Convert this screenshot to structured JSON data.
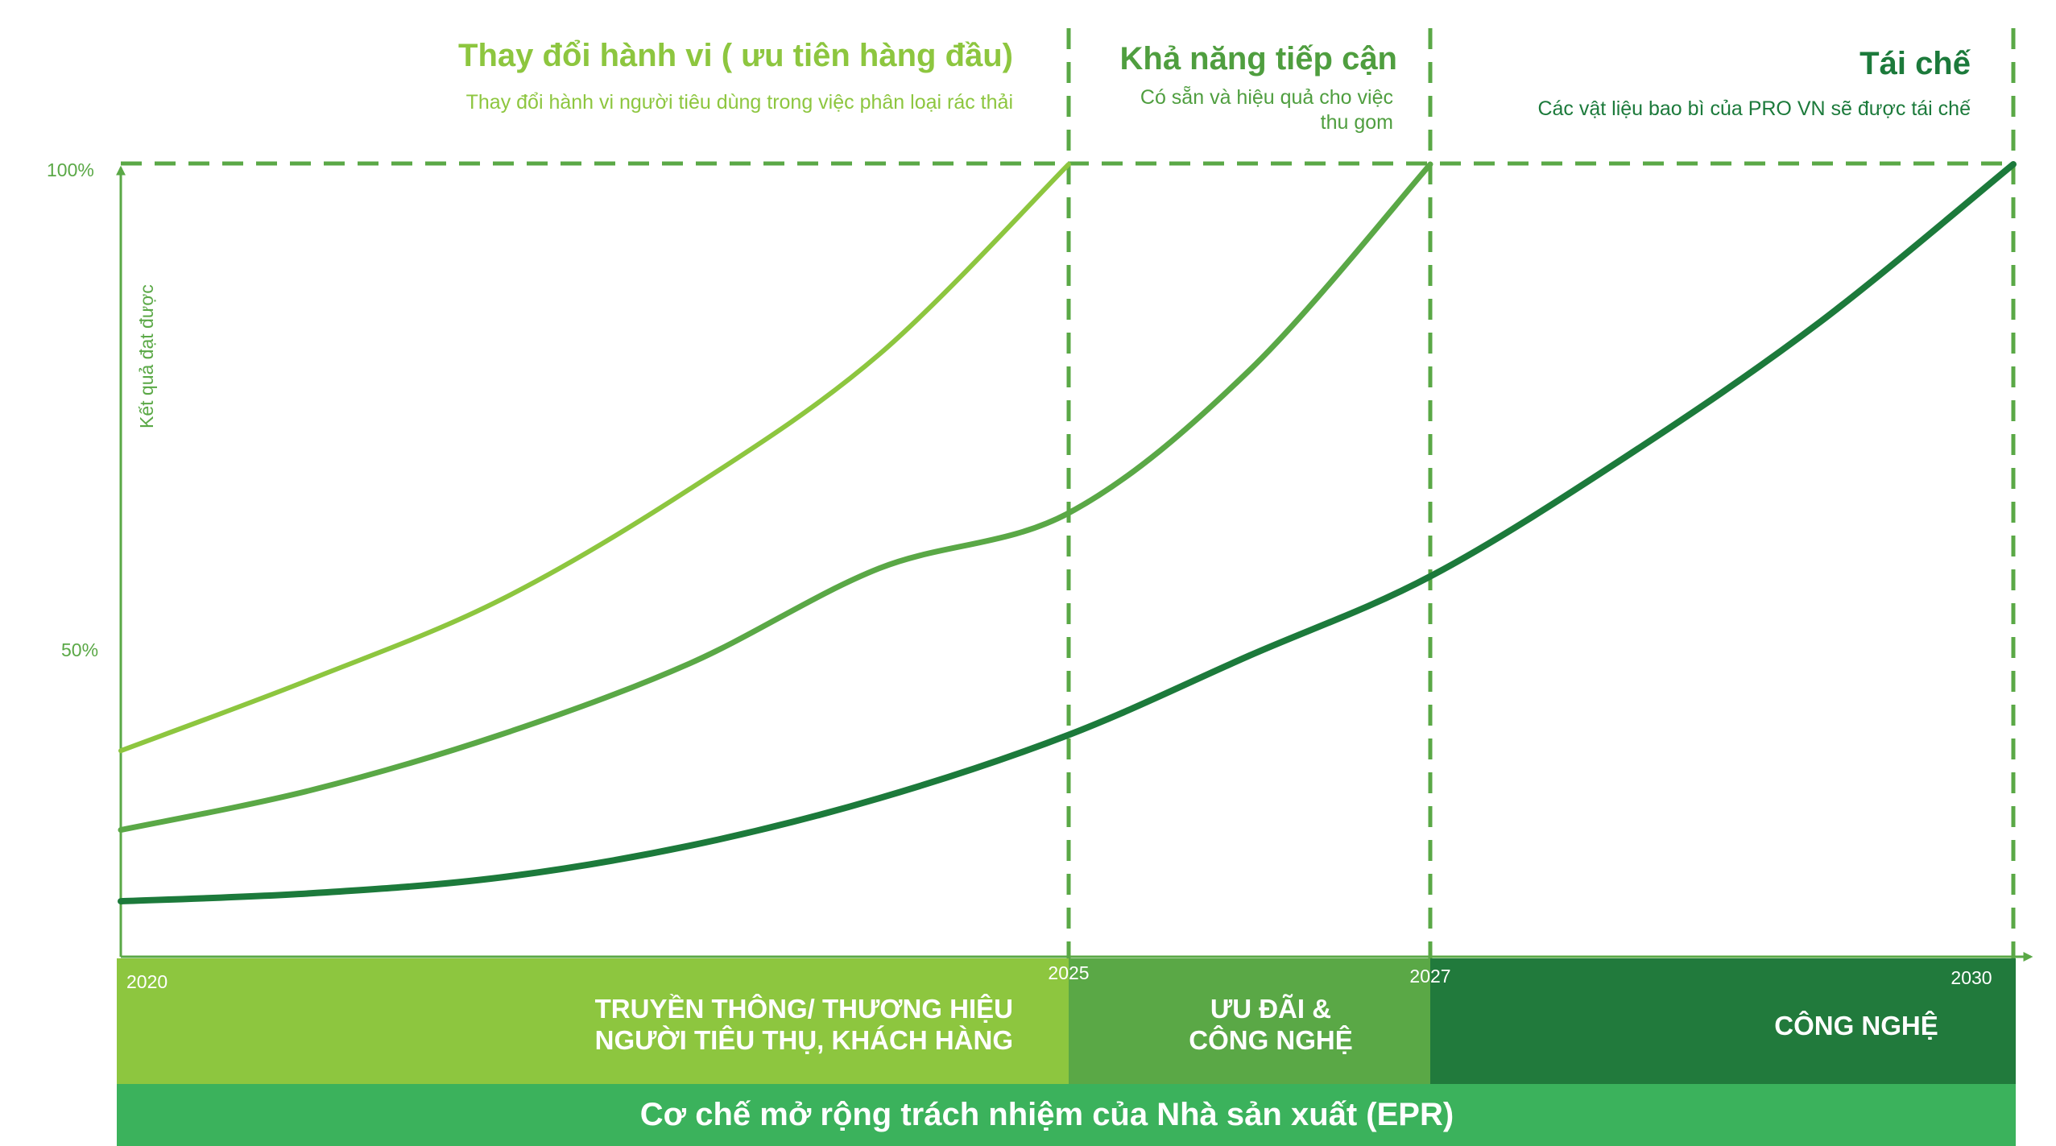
{
  "colors": {
    "light": "#8dc63f",
    "medium": "#5aa846",
    "dark": "#1c7a3b",
    "axis": "#5aa846",
    "band_dark": "#217a3c",
    "epr": "#3bb25c"
  },
  "phases": [
    {
      "title": "Thay đổi hành vi ( ưu tiên hàng đầu)",
      "subtitle_lines": [
        "Thay đổi hành vi người tiêu dùng trong việc phân loại rác thải"
      ],
      "color": "#8dc63f"
    },
    {
      "title": "Khả năng tiếp cận",
      "subtitle_lines": [
        "Có sẵn và hiệu quả cho việc",
        "thu gom"
      ],
      "color": "#4f9e3f"
    },
    {
      "title": "Tái chế",
      "subtitle_lines": [
        "Các vật liệu bao bì của PRO VN sẽ được tái chế"
      ],
      "color": "#1c7a3b"
    }
  ],
  "bands": [
    {
      "lines": [
        "TRUYỀN THÔNG/ THƯƠNG HIỆU",
        "NGƯỜI TIÊU THỤ, KHÁCH HÀNG"
      ],
      "color": "#8dc63f"
    },
    {
      "lines": [
        "ƯU ĐÃI &",
        "CÔNG NGHỆ"
      ],
      "color": "#5aa846"
    },
    {
      "lines": [
        "CÔNG NGHỆ"
      ],
      "color": "#217a3c"
    }
  ],
  "epr_label": "Cơ chế mở rộng trách nhiệm của Nhà sản xuất (EPR)",
  "chart_data": {
    "type": "line",
    "ylabel": "Kết quả đạt được",
    "yticks": [
      "100%",
      "50%"
    ],
    "ytick_values": [
      100,
      50
    ],
    "ylim": [
      0,
      100
    ],
    "x_labels": [
      "2020",
      "2025",
      "2027",
      "2030"
    ],
    "xlim": [
      2020,
      2030
    ],
    "grid": false,
    "phase_boundaries": [
      2025,
      2027,
      2030
    ],
    "series": [
      {
        "color": "#8dc63f",
        "x": [
          2020,
          2021,
          2022,
          2023,
          2024,
          2025
        ],
        "y": [
          26,
          35,
          45,
          59,
          76,
          100
        ]
      },
      {
        "color": "#5aa846",
        "x": [
          2020,
          2021,
          2022,
          2023,
          2024,
          2025,
          2026,
          2027
        ],
        "y": [
          16,
          21,
          28,
          37,
          49,
          56,
          74,
          100
        ]
      },
      {
        "color": "#1c7a3b",
        "x": [
          2020,
          2021,
          2022,
          2023,
          2024,
          2025,
          2026,
          2027,
          2028,
          2029,
          2030
        ],
        "y": [
          7,
          8,
          10,
          14,
          20,
          28,
          38,
          48,
          63,
          80,
          100
        ]
      }
    ]
  }
}
